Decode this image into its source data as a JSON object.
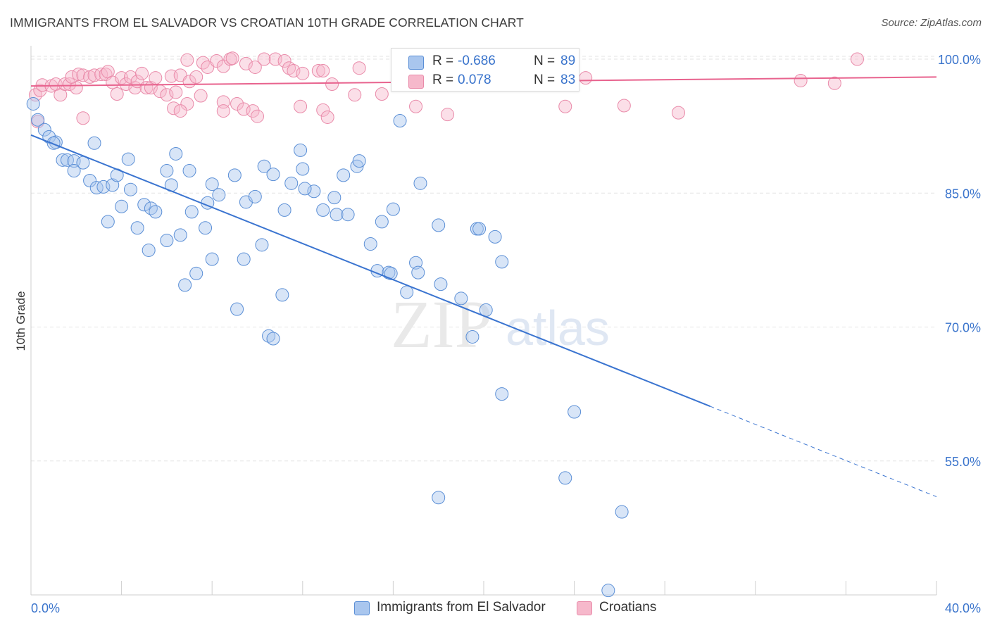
{
  "title": "IMMIGRANTS FROM EL SALVADOR VS CROATIAN 10TH GRADE CORRELATION CHART",
  "source": "Source: ZipAtlas.com",
  "watermark": {
    "zip": "ZIP",
    "atlas": "atlas"
  },
  "colors": {
    "blue_fill": "#a9c6ee",
    "blue_stroke": "#5b8fd6",
    "blue_line": "#3a74d0",
    "pink_fill": "#f6b8cb",
    "pink_stroke": "#e98aa9",
    "pink_line": "#e8638e",
    "tick_label": "#3a74cc",
    "grid": "#e3e3e3"
  },
  "stats": [
    {
      "r_label": "R =",
      "r_value": "-0.686",
      "n_label": "N =",
      "n_value": "89",
      "color": "#a9c6ee"
    },
    {
      "r_label": "R =",
      "r_value": "0.078",
      "n_label": "N =",
      "n_value": "83",
      "color": "#f6b8cb"
    }
  ],
  "legend": [
    {
      "label": "Immigrants from El Salvador",
      "color": "#a9c6ee"
    },
    {
      "label": "Croatians",
      "color": "#f6b8cb"
    }
  ],
  "chart_data": {
    "type": "scatter",
    "title": "IMMIGRANTS FROM EL SALVADOR VS CROATIAN 10TH GRADE CORRELATION CHART",
    "xlabel": "",
    "ylabel": "10th Grade",
    "xlim": [
      0,
      40
    ],
    "ylim": [
      40,
      101.5
    ],
    "x_tick_labels": [
      "0.0%",
      "40.0%"
    ],
    "y_ticks": [
      55,
      70,
      85,
      100
    ],
    "y_tick_labels": [
      "55.0%",
      "70.0%",
      "85.0%",
      "100.0%"
    ],
    "grid": true,
    "legend_position": "bottom-center",
    "series": [
      {
        "name": "Immigrants from El Salvador",
        "r": -0.686,
        "n": 89,
        "trend": {
          "x_start": 0,
          "y_start": 91.5,
          "x_solid_end": 30,
          "x_end": 40,
          "y_end": 51.0
        },
        "points": [
          [
            0.1,
            95.0
          ],
          [
            0.3,
            93.2
          ],
          [
            0.6,
            92.1
          ],
          [
            0.8,
            91.3
          ],
          [
            1.1,
            90.7
          ],
          [
            1.0,
            90.6
          ],
          [
            1.4,
            88.7
          ],
          [
            1.6,
            88.7
          ],
          [
            1.9,
            88.6
          ],
          [
            2.3,
            88.4
          ],
          [
            2.8,
            90.6
          ],
          [
            1.9,
            87.5
          ],
          [
            2.6,
            86.4
          ],
          [
            2.9,
            85.6
          ],
          [
            3.2,
            85.7
          ],
          [
            3.6,
            85.9
          ],
          [
            3.8,
            87.0
          ],
          [
            4.3,
            88.8
          ],
          [
            4.4,
            85.4
          ],
          [
            4.0,
            83.5
          ],
          [
            5.0,
            83.7
          ],
          [
            5.3,
            83.3
          ],
          [
            5.5,
            82.9
          ],
          [
            6.0,
            87.5
          ],
          [
            6.2,
            85.9
          ],
          [
            6.4,
            89.4
          ],
          [
            7.0,
            87.5
          ],
          [
            3.4,
            81.8
          ],
          [
            4.7,
            81.1
          ],
          [
            5.2,
            78.6
          ],
          [
            6.0,
            79.7
          ],
          [
            6.6,
            80.3
          ],
          [
            7.1,
            82.9
          ],
          [
            7.7,
            81.1
          ],
          [
            8.0,
            86.0
          ],
          [
            8.3,
            84.8
          ],
          [
            7.8,
            83.9
          ],
          [
            9.0,
            87.0
          ],
          [
            9.5,
            84.0
          ],
          [
            9.9,
            84.6
          ],
          [
            10.3,
            88.0
          ],
          [
            10.7,
            87.1
          ],
          [
            10.2,
            79.2
          ],
          [
            9.4,
            77.6
          ],
          [
            8.0,
            77.6
          ],
          [
            7.3,
            76.0
          ],
          [
            6.8,
            74.7
          ],
          [
            11.2,
            83.1
          ],
          [
            11.5,
            86.1
          ],
          [
            11.9,
            89.8
          ],
          [
            12.0,
            87.7
          ],
          [
            12.5,
            85.2
          ],
          [
            12.1,
            85.5
          ],
          [
            12.9,
            83.1
          ],
          [
            13.4,
            84.5
          ],
          [
            13.8,
            87.0
          ],
          [
            13.5,
            82.6
          ],
          [
            14.0,
            82.6
          ],
          [
            14.4,
            88.0
          ],
          [
            14.5,
            88.6
          ],
          [
            15.0,
            79.3
          ],
          [
            15.3,
            76.3
          ],
          [
            15.5,
            81.8
          ],
          [
            15.8,
            76.1
          ],
          [
            16.0,
            83.2
          ],
          [
            15.9,
            76.0
          ],
          [
            17.0,
            77.2
          ],
          [
            17.1,
            76.1
          ],
          [
            16.6,
            73.9
          ],
          [
            17.2,
            86.1
          ],
          [
            16.3,
            93.1
          ],
          [
            18.0,
            81.4
          ],
          [
            18.1,
            74.8
          ],
          [
            19.0,
            73.2
          ],
          [
            19.7,
            81.0
          ],
          [
            19.8,
            81.0
          ],
          [
            20.5,
            80.1
          ],
          [
            20.8,
            77.3
          ],
          [
            19.5,
            68.9
          ],
          [
            20.1,
            71.9
          ],
          [
            11.1,
            73.6
          ],
          [
            9.1,
            72.0
          ],
          [
            10.5,
            69.0
          ],
          [
            10.7,
            68.7
          ],
          [
            20.8,
            62.5
          ],
          [
            24.0,
            60.5
          ],
          [
            18.0,
            50.9
          ],
          [
            23.6,
            53.1
          ],
          [
            26.1,
            49.3
          ],
          [
            25.5,
            40.5
          ]
        ]
      },
      {
        "name": "Croatians",
        "r": 0.078,
        "n": 83,
        "trend": {
          "x_start": 0,
          "y_start": 97.0,
          "x_end": 40,
          "y_end": 98.0
        },
        "points": [
          [
            0.2,
            96.0
          ],
          [
            0.4,
            96.5
          ],
          [
            0.5,
            97.1
          ],
          [
            0.9,
            97.0
          ],
          [
            1.1,
            97.2
          ],
          [
            1.3,
            96.0
          ],
          [
            1.5,
            97.2
          ],
          [
            1.7,
            97.2
          ],
          [
            2.0,
            96.8
          ],
          [
            1.8,
            98.0
          ],
          [
            2.1,
            98.3
          ],
          [
            2.3,
            98.2
          ],
          [
            2.6,
            98.0
          ],
          [
            2.8,
            98.2
          ],
          [
            3.1,
            98.3
          ],
          [
            3.3,
            98.3
          ],
          [
            3.4,
            98.6
          ],
          [
            3.6,
            97.4
          ],
          [
            3.8,
            96.1
          ],
          [
            4.0,
            97.9
          ],
          [
            4.2,
            97.2
          ],
          [
            4.4,
            98.0
          ],
          [
            4.6,
            96.8
          ],
          [
            4.7,
            97.5
          ],
          [
            4.9,
            98.4
          ],
          [
            5.1,
            96.8
          ],
          [
            5.3,
            96.8
          ],
          [
            5.5,
            97.9
          ],
          [
            5.7,
            96.4
          ],
          [
            6.0,
            96.0
          ],
          [
            6.2,
            98.1
          ],
          [
            6.4,
            96.3
          ],
          [
            6.6,
            98.2
          ],
          [
            6.9,
            99.9
          ],
          [
            7.0,
            97.5
          ],
          [
            7.3,
            98.0
          ],
          [
            7.6,
            99.6
          ],
          [
            7.8,
            99.1
          ],
          [
            7.5,
            95.9
          ],
          [
            8.2,
            99.8
          ],
          [
            8.5,
            99.2
          ],
          [
            8.8,
            100.0
          ],
          [
            8.9,
            100.1
          ],
          [
            9.5,
            99.5
          ],
          [
            9.9,
            99.1
          ],
          [
            10.3,
            100.0
          ],
          [
            10.8,
            100.0
          ],
          [
            11.2,
            99.8
          ],
          [
            11.4,
            99.0
          ],
          [
            11.6,
            98.7
          ],
          [
            12.0,
            98.4
          ],
          [
            12.7,
            98.7
          ],
          [
            12.9,
            98.7
          ],
          [
            13.3,
            97.2
          ],
          [
            14.3,
            96.0
          ],
          [
            14.5,
            99.0
          ],
          [
            15.5,
            96.1
          ],
          [
            17.3,
            100.0
          ],
          [
            17.4,
            99.9
          ],
          [
            17.0,
            94.7
          ],
          [
            16.5,
            100.0
          ],
          [
            8.5,
            95.2
          ],
          [
            8.5,
            94.2
          ],
          [
            9.1,
            95.0
          ],
          [
            9.4,
            94.4
          ],
          [
            9.8,
            94.2
          ],
          [
            10.0,
            93.6
          ],
          [
            11.9,
            94.7
          ],
          [
            12.9,
            94.3
          ],
          [
            13.1,
            93.5
          ],
          [
            6.9,
            95.0
          ],
          [
            6.3,
            94.5
          ],
          [
            6.6,
            94.2
          ],
          [
            2.3,
            93.4
          ],
          [
            0.3,
            93.0
          ],
          [
            18.4,
            93.8
          ],
          [
            23.6,
            94.7
          ],
          [
            26.2,
            94.8
          ],
          [
            28.6,
            94.0
          ],
          [
            24.5,
            97.9
          ],
          [
            34.0,
            97.6
          ],
          [
            35.5,
            97.3
          ],
          [
            36.5,
            100.0
          ]
        ]
      }
    ]
  }
}
